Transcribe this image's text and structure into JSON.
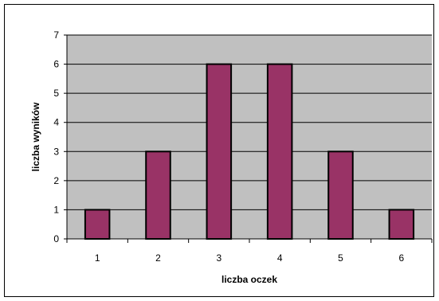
{
  "chart_data": {
    "type": "bar",
    "categories": [
      "1",
      "2",
      "3",
      "4",
      "5",
      "6"
    ],
    "values": [
      1,
      3,
      6,
      6,
      3,
      1
    ],
    "title": "",
    "xlabel": "liczba oczek",
    "ylabel": "liczba wyników",
    "ylim": [
      0,
      7
    ],
    "yticks": [
      0,
      1,
      2,
      3,
      4,
      5,
      6,
      7
    ],
    "grid": true,
    "legend": "none",
    "colors": {
      "bar_fill": "#993366",
      "bar_stroke": "#000000",
      "plot_background": "#c0c0c0",
      "gridline": "#000000"
    }
  }
}
